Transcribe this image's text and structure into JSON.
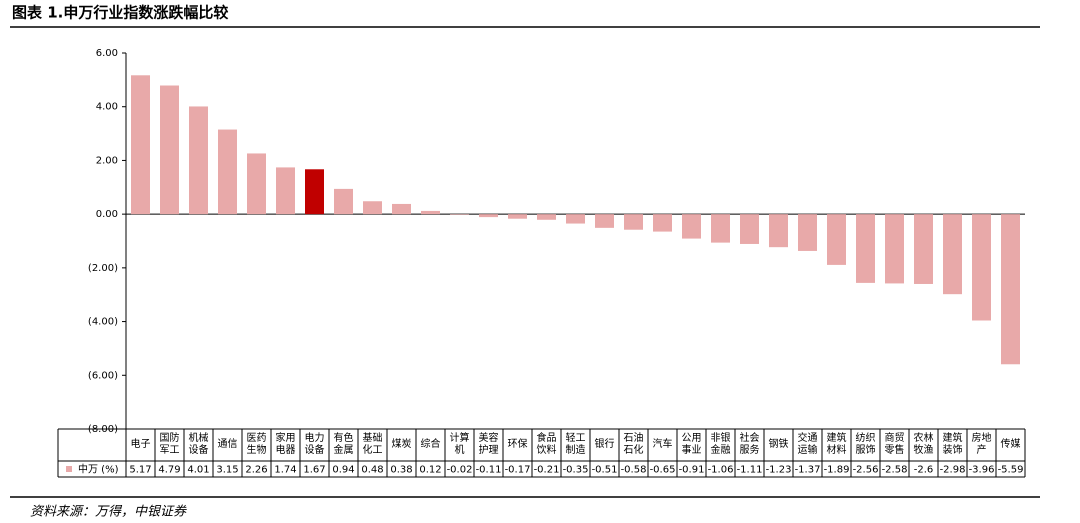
{
  "chart_data": {
    "type": "bar",
    "title": "图表 1.申万行业指数涨跌幅比较",
    "categories": [
      "电子",
      "国防军工",
      "机械设备",
      "通信",
      "医药生物",
      "家用电器",
      "电力设备",
      "有色金属",
      "基础化工",
      "煤炭",
      "综合",
      "计算机",
      "美容护理",
      "环保",
      "食品饮料",
      "轻工制造",
      "银行",
      "石油石化",
      "汽车",
      "公用事业",
      "非银金融",
      "社会服务",
      "钢铁",
      "交通运输",
      "建筑材料",
      "纺织服饰",
      "商贸零售",
      "农林牧渔",
      "建筑装饰",
      "房地产",
      "传媒"
    ],
    "series": [
      {
        "name": "中万 (%)",
        "color": "#e8a9a9",
        "values": [
          5.17,
          4.79,
          4.01,
          3.15,
          2.26,
          1.74,
          1.67,
          0.94,
          0.48,
          0.38,
          0.12,
          -0.02,
          -0.11,
          -0.17,
          -0.21,
          -0.35,
          -0.51,
          -0.58,
          -0.65,
          -0.91,
          -1.06,
          -1.11,
          -1.23,
          -1.37,
          -1.89,
          -2.56,
          -2.58,
          -2.6,
          -2.98,
          -3.96,
          -5.59
        ],
        "colors": [
          "#e8a9a9",
          "#e8a9a9",
          "#e8a9a9",
          "#e8a9a9",
          "#e8a9a9",
          "#e8a9a9",
          "#c00000",
          "#e8a9a9",
          "#e8a9a9",
          "#e8a9a9",
          "#e8a9a9",
          "#e8a9a9",
          "#e8a9a9",
          "#e8a9a9",
          "#e8a9a9",
          "#e8a9a9",
          "#e8a9a9",
          "#e8a9a9",
          "#e8a9a9",
          "#e8a9a9",
          "#e8a9a9",
          "#e8a9a9",
          "#e8a9a9",
          "#e8a9a9",
          "#e8a9a9",
          "#e8a9a9",
          "#e8a9a9",
          "#e8a9a9",
          "#e8a9a9",
          "#e8a9a9",
          "#e8a9a9"
        ]
      }
    ],
    "ylim": [
      -8,
      6
    ],
    "yticks": [
      {
        "value": 6,
        "label": "6.00"
      },
      {
        "value": 4,
        "label": "4.00"
      },
      {
        "value": 2,
        "label": "2.00"
      },
      {
        "value": 0,
        "label": "0.00"
      },
      {
        "value": -2,
        "label": "(2.00)"
      },
      {
        "value": -4,
        "label": "(4.00)"
      },
      {
        "value": -6,
        "label": "(6.00)"
      },
      {
        "value": -8,
        "label": "(8.00)"
      }
    ],
    "source": "资料来源：万得，中银证券"
  }
}
